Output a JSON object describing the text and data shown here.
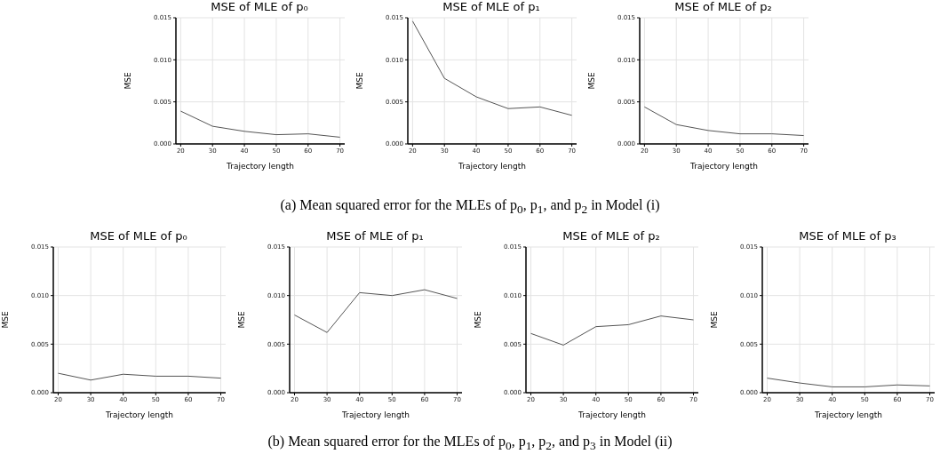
{
  "chart_data": [
    {
      "type": "line",
      "title": "MSE of MLE of p₀",
      "xlabel": "Trajectory length",
      "ylabel": "MSE",
      "x": [
        20,
        30,
        40,
        50,
        60,
        70
      ],
      "series": [
        {
          "color": "#555555",
          "values": [
            0.0039,
            0.0021,
            0.0015,
            0.0011,
            0.0012,
            0.0008
          ]
        }
      ],
      "xlim": [
        18.5,
        71.5
      ],
      "xticks": [
        20,
        30,
        40,
        50,
        60,
        70
      ],
      "ylim": [
        0,
        0.015
      ],
      "yticks": [
        {
          "value": 0,
          "label": "0.000"
        },
        {
          "value": 0.005,
          "label": "0.005"
        },
        {
          "value": 0.01,
          "label": "0.010"
        },
        {
          "value": 0.015,
          "label": "0.015"
        }
      ],
      "grid": true,
      "marker": "none",
      "line_style": "solid",
      "annotations": [
        "(a)  Mean squared error for the MLEs of p$_{0}$, p$_{1}$, and p$_{2}$ in Model (i)"
      ]
    },
    {
      "type": "line",
      "title": "MSE of MLE of p₁",
      "xlabel": "Trajectory length",
      "ylabel": "MSE",
      "x": [
        20,
        30,
        40,
        50,
        60,
        70
      ],
      "series": [
        {
          "color": "#555555",
          "values": [
            0.0146,
            0.0078,
            0.0056,
            0.0042,
            0.0044,
            0.0034
          ]
        }
      ],
      "xlim": [
        18.5,
        71.5
      ],
      "xticks": [
        20,
        30,
        40,
        50,
        60,
        70
      ],
      "ylim": [
        0,
        0.015
      ],
      "yticks": [
        {
          "value": 0,
          "label": "0.000"
        },
        {
          "value": 0.005,
          "label": "0.005"
        },
        {
          "value": 0.01,
          "label": "0.010"
        },
        {
          "value": 0.015,
          "label": "0.015"
        }
      ],
      "grid": true,
      "marker": "none",
      "line_style": "solid"
    },
    {
      "type": "line",
      "title": "MSE of MLE of p₂",
      "xlabel": "Trajectory length",
      "ylabel": "MSE",
      "x": [
        20,
        30,
        40,
        50,
        60,
        70
      ],
      "series": [
        {
          "color": "#555555",
          "values": [
            0.0044,
            0.0023,
            0.0016,
            0.0012,
            0.0012,
            0.001
          ]
        }
      ],
      "xlim": [
        18.5,
        71.5
      ],
      "xticks": [
        20,
        30,
        40,
        50,
        60,
        70
      ],
      "ylim": [
        0,
        0.015
      ],
      "yticks": [
        {
          "value": 0,
          "label": "0.000"
        },
        {
          "value": 0.005,
          "label": "0.005"
        },
        {
          "value": 0.01,
          "label": "0.010"
        },
        {
          "value": 0.015,
          "label": "0.015"
        }
      ],
      "grid": true,
      "marker": "none",
      "line_style": "solid"
    },
    {
      "type": "line",
      "title": "MSE of MLE of p₀",
      "xlabel": "Trajectory length",
      "ylabel": "MSE",
      "x": [
        20,
        30,
        40,
        50,
        60,
        70
      ],
      "series": [
        {
          "color": "#555555",
          "values": [
            0.002,
            0.0013,
            0.0019,
            0.0017,
            0.0017,
            0.0015
          ]
        }
      ],
      "xlim": [
        18.5,
        71.5
      ],
      "xticks": [
        20,
        30,
        40,
        50,
        60,
        70
      ],
      "ylim": [
        0,
        0.015
      ],
      "yticks": [
        {
          "value": 0,
          "label": "0.000"
        },
        {
          "value": 0.005,
          "label": "0.005"
        },
        {
          "value": 0.01,
          "label": "0.010"
        },
        {
          "value": 0.015,
          "label": "0.015"
        }
      ],
      "grid": true,
      "marker": "none",
      "line_style": "solid",
      "annotations": [
        "(b)  Mean squared error for the MLEs of p$_{0}$, p$_{1}$, p$_{2}$, and p$_{3}$ in Model (ii)"
      ]
    },
    {
      "type": "line",
      "title": "MSE of MLE of p₁",
      "xlabel": "Trajectory length",
      "ylabel": "MSE",
      "x": [
        20,
        30,
        40,
        50,
        60,
        70
      ],
      "series": [
        {
          "color": "#555555",
          "values": [
            0.008,
            0.0062,
            0.0103,
            0.01,
            0.0106,
            0.0097
          ]
        }
      ],
      "xlim": [
        18.5,
        71.5
      ],
      "xticks": [
        20,
        30,
        40,
        50,
        60,
        70
      ],
      "ylim": [
        0,
        0.015
      ],
      "yticks": [
        {
          "value": 0,
          "label": "0.000"
        },
        {
          "value": 0.005,
          "label": "0.005"
        },
        {
          "value": 0.01,
          "label": "0.010"
        },
        {
          "value": 0.015,
          "label": "0.015"
        }
      ],
      "grid": true,
      "marker": "none",
      "line_style": "solid"
    },
    {
      "type": "line",
      "title": "MSE of MLE of p₂",
      "xlabel": "Trajectory length",
      "ylabel": "MSE",
      "x": [
        20,
        30,
        40,
        50,
        60,
        70
      ],
      "series": [
        {
          "color": "#555555",
          "values": [
            0.0061,
            0.0049,
            0.0068,
            0.007,
            0.0079,
            0.0075
          ]
        }
      ],
      "xlim": [
        18.5,
        71.5
      ],
      "xticks": [
        20,
        30,
        40,
        50,
        60,
        70
      ],
      "ylim": [
        0,
        0.015
      ],
      "yticks": [
        {
          "value": 0,
          "label": "0.000"
        },
        {
          "value": 0.005,
          "label": "0.005"
        },
        {
          "value": 0.01,
          "label": "0.010"
        },
        {
          "value": 0.015,
          "label": "0.015"
        }
      ],
      "grid": true,
      "marker": "none",
      "line_style": "solid"
    },
    {
      "type": "line",
      "title": "MSE of MLE of p₃",
      "xlabel": "Trajectory length",
      "ylabel": "MSE",
      "x": [
        20,
        30,
        40,
        50,
        60,
        70
      ],
      "series": [
        {
          "color": "#555555",
          "values": [
            0.0015,
            0.001,
            0.0006,
            0.0006,
            0.0008,
            0.0007
          ]
        }
      ],
      "xlim": [
        18.5,
        71.5
      ],
      "xticks": [
        20,
        30,
        40,
        50,
        60,
        70
      ],
      "ylim": [
        0,
        0.015
      ],
      "yticks": [
        {
          "value": 0,
          "label": "0.000"
        },
        {
          "value": 0.005,
          "label": "0.005"
        },
        {
          "value": 0.01,
          "label": "0.010"
        },
        {
          "value": 0.015,
          "label": "0.015"
        }
      ],
      "grid": true,
      "marker": "none",
      "line_style": "solid"
    }
  ]
}
